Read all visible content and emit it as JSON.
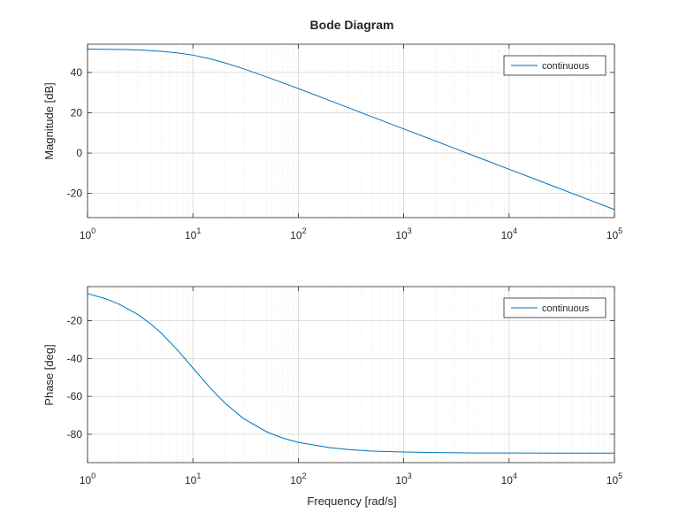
{
  "chart_data": {
    "type": "line",
    "title": "Bode Diagram",
    "xscale": "log",
    "xlim": [
      1,
      100000
    ],
    "xlabel": "Frequency [rad/s]",
    "xticks": [
      1,
      10,
      100,
      1000,
      10000,
      100000
    ],
    "xtick_labels": [
      {
        "base": "10",
        "exp": "0"
      },
      {
        "base": "10",
        "exp": "1"
      },
      {
        "base": "10",
        "exp": "2"
      },
      {
        "base": "10",
        "exp": "3"
      },
      {
        "base": "10",
        "exp": "4"
      },
      {
        "base": "10",
        "exp": "5"
      }
    ],
    "grid": true,
    "line_color": "#0072BD",
    "subplots": [
      {
        "name": "magnitude",
        "ylabel": "Magnitude [dB]",
        "ylim": [
          -32,
          54
        ],
        "yticks": [
          40,
          20,
          0,
          -20
        ],
        "ytick_labels": [
          "40",
          "20",
          "0",
          "-20"
        ],
        "legend": {
          "position": "top-right",
          "entries": [
            "continuous"
          ]
        },
        "series": [
          {
            "name": "continuous",
            "x": [
              1,
              2,
              3,
              5,
              7,
              10,
              15,
              20,
              30,
              50,
              70,
              100,
              200,
              300,
              500,
              700,
              1000,
              2000,
              5000,
              10000,
              20000,
              50000,
              100000
            ],
            "y": [
              51.6,
              51.4,
              51.2,
              50.5,
              49.7,
              48.6,
              46.6,
              44.8,
              41.9,
              37.8,
              35.0,
              32.0,
              26.0,
              22.5,
              18.0,
              15.1,
              12.0,
              6.0,
              -2.0,
              -8.0,
              -14.0,
              -22.0,
              -28.0
            ]
          }
        ]
      },
      {
        "name": "phase",
        "ylabel": "Phase [deg]",
        "ylim": [
          -95,
          -2
        ],
        "yticks": [
          -20,
          -40,
          -60,
          -80
        ],
        "ytick_labels": [
          "-20",
          "-40",
          "-60",
          "-80"
        ],
        "legend": {
          "position": "top-right",
          "entries": [
            "continuous"
          ]
        },
        "series": [
          {
            "name": "continuous",
            "x": [
              1,
              1.5,
              2,
              3,
              4,
              5,
              7,
              10,
              15,
              20,
              30,
              50,
              70,
              100,
              200,
              300,
              500,
              1000,
              2000,
              5000,
              10000,
              100000
            ],
            "y": [
              -5.7,
              -8.5,
              -11.3,
              -16.7,
              -21.8,
              -26.6,
              -35.0,
              -45.0,
              -56.3,
              -63.4,
              -71.6,
              -78.7,
              -81.9,
              -84.3,
              -87.1,
              -88.1,
              -88.9,
              -89.4,
              -89.7,
              -89.9,
              -89.9,
              -90.0
            ]
          }
        ]
      }
    ]
  }
}
